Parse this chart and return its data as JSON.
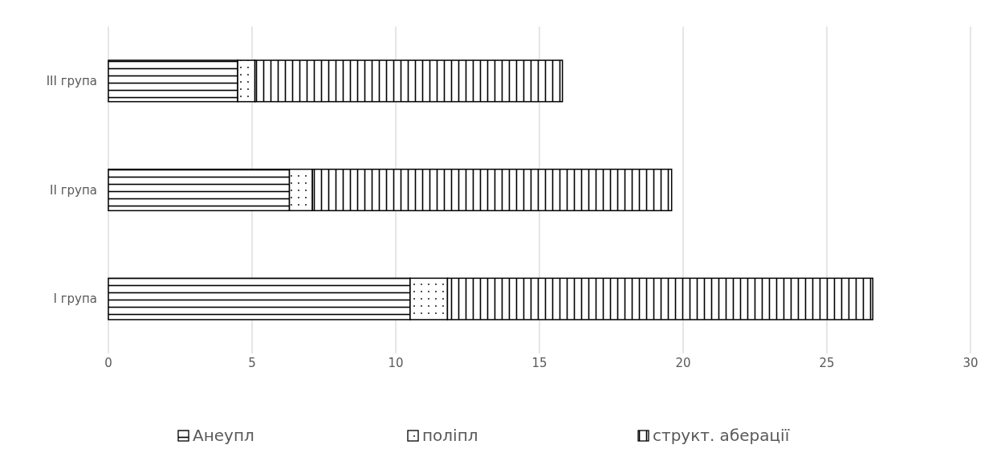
{
  "chart_data": {
    "type": "bar",
    "orientation": "horizontal",
    "stacked": true,
    "categories": [
      "III група",
      "II група",
      "I група"
    ],
    "series": [
      {
        "name": "Анеупл",
        "color": "#000000",
        "values": [
          4.5,
          6.3,
          10.5
        ]
      },
      {
        "name": "поліпл",
        "color": "#000000",
        "values": [
          0.6,
          0.8,
          1.3
        ]
      },
      {
        "name": "структ. аберації",
        "color": "#000000",
        "values": [
          10.7,
          12.5,
          14.8
        ]
      }
    ],
    "xlim": [
      0,
      30
    ],
    "xticks": [
      0,
      5,
      10,
      15,
      20,
      25,
      30
    ],
    "grid": "x",
    "legend": "bottom"
  }
}
